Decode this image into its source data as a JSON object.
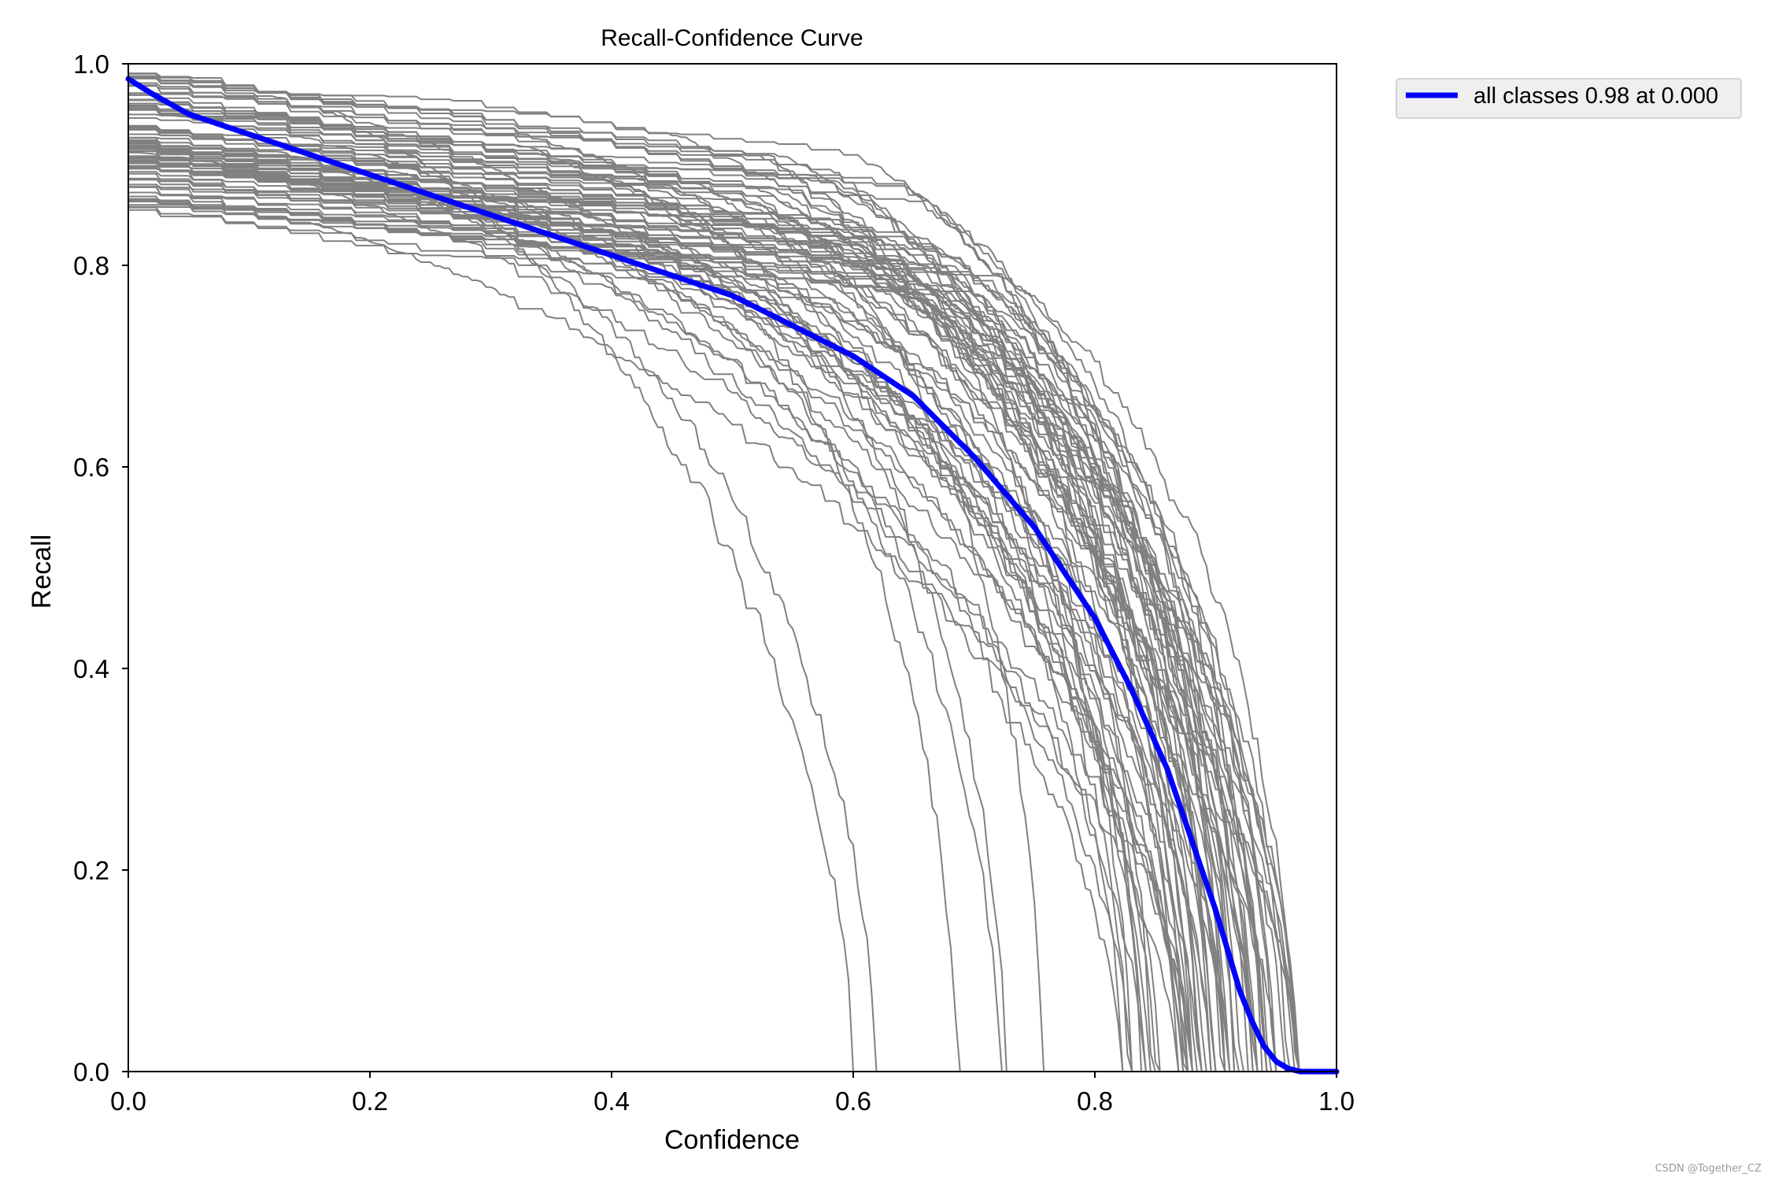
{
  "chart_data": {
    "type": "line",
    "title": "Recall-Confidence Curve",
    "xlabel": "Confidence",
    "ylabel": "Recall",
    "xlim": [
      0.0,
      1.0
    ],
    "ylim": [
      0.0,
      1.0
    ],
    "xticks": [
      "0.0",
      "0.2",
      "0.4",
      "0.6",
      "0.8",
      "1.0"
    ],
    "yticks": [
      "0.0",
      "0.2",
      "0.4",
      "0.6",
      "0.8",
      "1.0"
    ],
    "grid": false,
    "legend_position": "outside-top-right",
    "legend": [
      "all classes 0.98 at 0.000"
    ],
    "series": [
      {
        "name": "all classes 0.98 at 0.000",
        "color": "#0000ff",
        "x": [
          0.0,
          0.02,
          0.05,
          0.1,
          0.15,
          0.2,
          0.25,
          0.3,
          0.35,
          0.4,
          0.45,
          0.5,
          0.55,
          0.6,
          0.65,
          0.7,
          0.75,
          0.8,
          0.83,
          0.86,
          0.88,
          0.9,
          0.91,
          0.92,
          0.93,
          0.94,
          0.95,
          0.96,
          0.97,
          0.98,
          1.0
        ],
        "y": [
          0.985,
          0.97,
          0.95,
          0.93,
          0.91,
          0.89,
          0.87,
          0.85,
          0.83,
          0.81,
          0.79,
          0.77,
          0.74,
          0.71,
          0.67,
          0.61,
          0.54,
          0.45,
          0.38,
          0.3,
          0.23,
          0.16,
          0.12,
          0.08,
          0.05,
          0.025,
          0.01,
          0.003,
          0.0,
          0.0,
          0.0
        ]
      }
    ],
    "class_curves_color": "#808080",
    "class_curve_count": 80
  },
  "watermark": "CSDN @Together_CZ"
}
